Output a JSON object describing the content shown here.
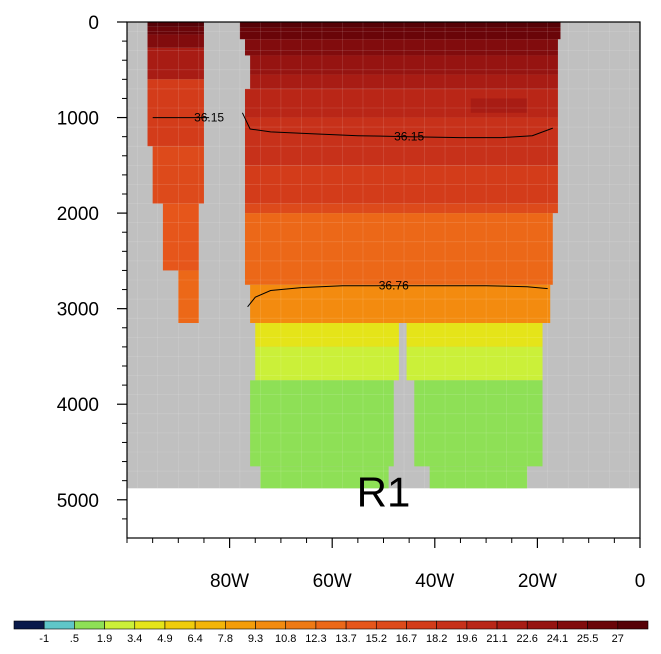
{
  "chart_data": {
    "type": "heatmap",
    "title": "",
    "xlabel": "",
    "ylabel": "",
    "panel_label": "R1",
    "x_axis": {
      "range_lon": [
        -100,
        0
      ],
      "ticks": [
        -80,
        -60,
        -40,
        -20,
        0
      ],
      "tick_labels": [
        "80W",
        "60W",
        "40W",
        "20W",
        "0"
      ]
    },
    "y_axis": {
      "range_depth_m": [
        0,
        5400
      ],
      "reversed": true,
      "ticks": [
        0,
        1000,
        2000,
        3000,
        4000,
        5000
      ],
      "tick_labels": [
        "0",
        "1000",
        "2000",
        "3000",
        "4000",
        "5000"
      ]
    },
    "colorbar": {
      "labels": [
        "-1",
        ".5",
        "1.9",
        "3.4",
        "4.9",
        "6.4",
        "7.8",
        "9.3",
        "10.8",
        "12.3",
        "13.7",
        "15.2",
        "16.7",
        "18.2",
        "19.6",
        "21.1",
        "22.6",
        "24.1",
        "25.5",
        "27"
      ],
      "colors": [
        "#0a1a4a",
        "#5fc6c8",
        "#8ee056",
        "#cbf039",
        "#e5e419",
        "#f0cc0c",
        "#f3b50a",
        "#f49d0a",
        "#f38b0f",
        "#ef7a14",
        "#ec6818",
        "#e6561b",
        "#dd4a1b",
        "#d33c1a",
        "#c7311a",
        "#b92617",
        "#a81c14",
        "#961411",
        "#810c0d",
        "#6a0509",
        "#560207"
      ]
    },
    "contours": [
      {
        "label": "36.15",
        "points": [
          [
            -95,
            1000
          ],
          [
            -84,
            1000
          ]
        ]
      },
      {
        "label": "36.15",
        "points": [
          [
            -77.5,
            950
          ],
          [
            -76,
            1120
          ],
          [
            -72,
            1150
          ],
          [
            -64,
            1170
          ],
          [
            -55,
            1190
          ],
          [
            -45,
            1200
          ],
          [
            -35,
            1210
          ],
          [
            -27,
            1210
          ],
          [
            -21,
            1190
          ],
          [
            -17,
            1110
          ]
        ]
      },
      {
        "label": "36.76",
        "points": [
          [
            -76.5,
            2980
          ],
          [
            -75,
            2880
          ],
          [
            -72,
            2810
          ],
          [
            -66,
            2780
          ],
          [
            -58,
            2760
          ],
          [
            -48,
            2760
          ],
          [
            -38,
            2760
          ],
          [
            -30,
            2760
          ],
          [
            -22,
            2770
          ],
          [
            -18,
            2790
          ]
        ]
      }
    ],
    "regions": [
      {
        "value": 27.5,
        "lon": [
          -96,
          -85
        ],
        "depth": [
          0,
          50
        ]
      },
      {
        "value": 26,
        "lon": [
          -96,
          -85
        ],
        "depth": [
          50,
          130
        ]
      },
      {
        "value": 24.5,
        "lon": [
          -96,
          -85
        ],
        "depth": [
          130,
          270
        ]
      },
      {
        "value": 21.8,
        "lon": [
          -96,
          -85
        ],
        "depth": [
          270,
          600
        ]
      },
      {
        "value": 17.5,
        "lon": [
          -96,
          -85
        ],
        "depth": [
          600,
          1300
        ]
      },
      {
        "value": 16,
        "lon": [
          -95,
          -85
        ],
        "depth": [
          1300,
          1900
        ]
      },
      {
        "value": 14.4,
        "lon": [
          -93,
          -86
        ],
        "depth": [
          1900,
          2600
        ]
      },
      {
        "value": 13.2,
        "lon": [
          -90,
          -86
        ],
        "depth": [
          2600,
          3150
        ]
      },
      {
        "value": 27.5,
        "lon": [
          -78,
          -15.5
        ],
        "depth": [
          0,
          60
        ]
      },
      {
        "value": 26.2,
        "lon": [
          -78,
          -15.5
        ],
        "depth": [
          60,
          180
        ]
      },
      {
        "value": 24.8,
        "lon": [
          -77,
          -16
        ],
        "depth": [
          180,
          350
        ]
      },
      {
        "value": 23.2,
        "lon": [
          -76,
          -16
        ],
        "depth": [
          350,
          550
        ]
      },
      {
        "value": 22,
        "lon": [
          -76,
          -16
        ],
        "depth": [
          550,
          700
        ]
      },
      {
        "value": 20.5,
        "lon": [
          -77,
          -16
        ],
        "depth": [
          700,
          1000
        ]
      },
      {
        "value": 22,
        "lon": [
          -33,
          -22
        ],
        "depth": [
          800,
          950
        ]
      },
      {
        "value": 19.3,
        "lon": [
          -77,
          -16
        ],
        "depth": [
          1000,
          1500
        ]
      },
      {
        "value": 17,
        "lon": [
          -77,
          -16
        ],
        "depth": [
          1500,
          1900
        ]
      },
      {
        "value": 15.8,
        "lon": [
          -77,
          -16
        ],
        "depth": [
          1900,
          2000
        ]
      },
      {
        "value": 12.8,
        "lon": [
          -77,
          -17
        ],
        "depth": [
          2000,
          2750
        ]
      },
      {
        "value": 10.2,
        "lon": [
          -76,
          -17.5
        ],
        "depth": [
          2750,
          3150
        ]
      },
      {
        "value": 4,
        "lon": [
          -75,
          -47
        ],
        "depth": [
          3150,
          3400
        ]
      },
      {
        "value": 4,
        "lon": [
          -45.5,
          -19
        ],
        "depth": [
          3150,
          3400
        ]
      },
      {
        "value": 2.6,
        "lon": [
          -75,
          -47
        ],
        "depth": [
          3400,
          3750
        ]
      },
      {
        "value": 2.6,
        "lon": [
          -45.5,
          -19
        ],
        "depth": [
          3400,
          3750
        ]
      },
      {
        "value": 1,
        "lon": [
          -76,
          -48
        ],
        "depth": [
          3750,
          4650
        ]
      },
      {
        "value": 1,
        "lon": [
          -44,
          -19
        ],
        "depth": [
          3750,
          4650
        ]
      },
      {
        "value": 1,
        "lon": [
          -74,
          -49
        ],
        "depth": [
          4650,
          4880
        ]
      },
      {
        "value": 1,
        "lon": [
          -41,
          -22
        ],
        "depth": [
          4650,
          4880
        ]
      }
    ],
    "land_mask": {
      "color": "#c0c0c0",
      "depth_range": [
        0,
        4880
      ],
      "lon_range": [
        -100,
        0
      ]
    }
  }
}
